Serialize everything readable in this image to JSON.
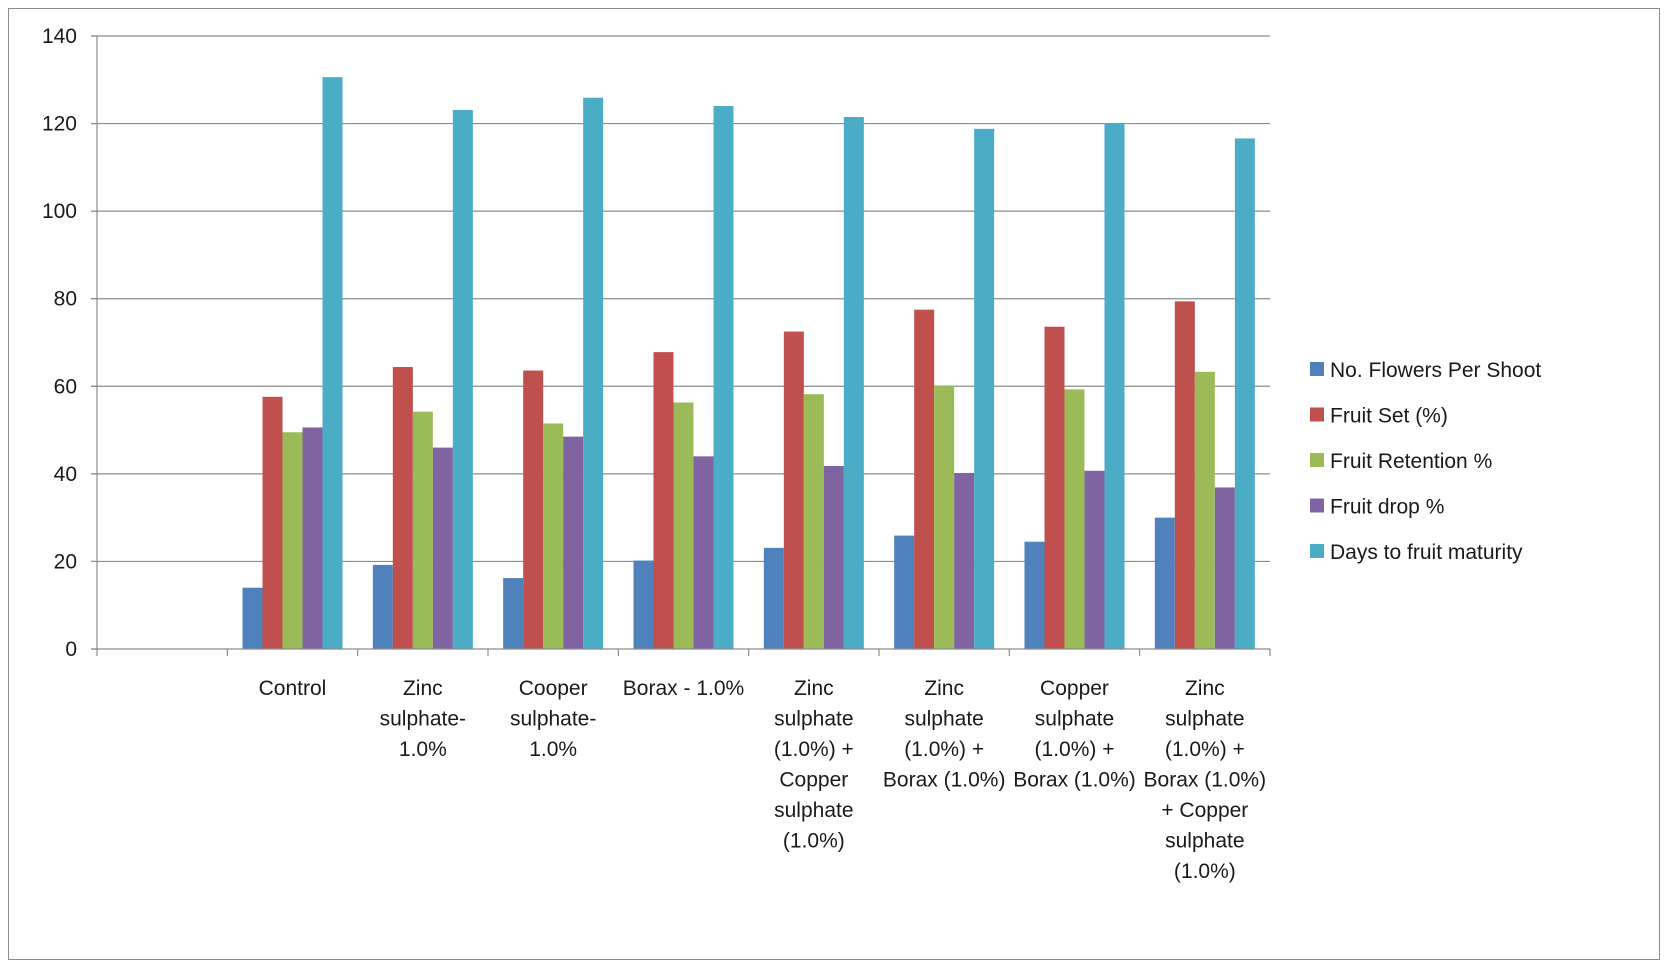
{
  "chart_data": {
    "type": "bar",
    "title": "",
    "xlabel": "",
    "ylabel": "",
    "ylim": [
      0,
      140
    ],
    "yticks": [
      0,
      20,
      40,
      60,
      80,
      100,
      120,
      140
    ],
    "grid": true,
    "legend_position": "right",
    "categories": [
      "",
      "Control",
      "Zinc sulphate- 1.0%",
      "Cooper sulphate- 1.0%",
      "Borax - 1.0%",
      "Zinc sulphate (1.0%) + Copper sulphate (1.0%)",
      "Zinc sulphate (1.0%) + Borax (1.0%)",
      "Copper sulphate (1.0%) + Borax (1.0%)",
      "Zinc sulphate (1.0%) + Borax (1.0%) + Copper sulphate (1.0%)"
    ],
    "category_lines": [
      [
        ""
      ],
      [
        "Control"
      ],
      [
        "Zinc",
        "sulphate-",
        "1.0%"
      ],
      [
        "Cooper",
        "sulphate-",
        "1.0%"
      ],
      [
        "Borax - 1.0%"
      ],
      [
        "Zinc",
        "sulphate",
        "(1.0%) +",
        "Copper",
        "sulphate",
        "(1.0%)"
      ],
      [
        "Zinc",
        "sulphate",
        "(1.0%) +",
        "Borax (1.0%)"
      ],
      [
        "Copper",
        "sulphate",
        "(1.0%) +",
        "Borax (1.0%)"
      ],
      [
        "Zinc",
        "sulphate",
        "(1.0%) +",
        "Borax (1.0%)",
        "+ Copper",
        "sulphate",
        "(1.0%)"
      ]
    ],
    "series": [
      {
        "name": "No. Flowers Per Shoot",
        "color": "#4F81BD",
        "values": [
          null,
          14,
          19.2,
          16.2,
          20.2,
          23.1,
          25.9,
          24.5,
          30.0
        ]
      },
      {
        "name": "Fruit Set (%)",
        "color": "#C0504D",
        "values": [
          null,
          57.6,
          64.4,
          63.6,
          67.8,
          72.5,
          77.5,
          73.6,
          79.4
        ]
      },
      {
        "name": "Fruit Retention %",
        "color": "#9BBB59",
        "values": [
          null,
          49.5,
          54.2,
          51.5,
          56.3,
          58.2,
          60.2,
          59.3,
          63.3
        ]
      },
      {
        "name": "Fruit drop %",
        "color": "#8064A2",
        "values": [
          null,
          50.6,
          46.0,
          48.5,
          44.0,
          41.8,
          40.2,
          40.7,
          36.9
        ]
      },
      {
        "name": "Days to fruit maturity",
        "color": "#4BACC6",
        "values": [
          null,
          130.6,
          123.1,
          125.9,
          124.0,
          121.5,
          118.8,
          120.1,
          116.6
        ]
      }
    ]
  }
}
